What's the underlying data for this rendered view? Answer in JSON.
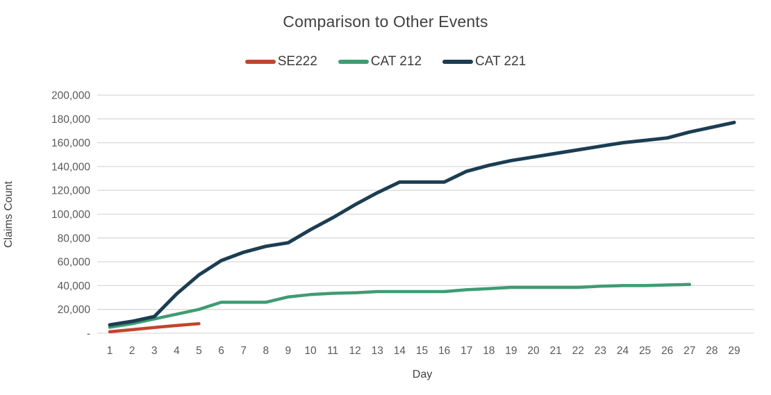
{
  "title": "Comparison to Other Events",
  "colors": {
    "title_text": "#404040",
    "axis_text": "#595959",
    "gridline": "#d9d9d9",
    "se222": "#c2442e",
    "cat212": "#3e9c72",
    "cat221": "#1c3d52"
  },
  "chart_data": {
    "type": "line",
    "title": "Comparison to Other Events",
    "xlabel": "Day",
    "ylabel": "Claims Count",
    "x": [
      1,
      2,
      3,
      4,
      5,
      6,
      7,
      8,
      9,
      10,
      11,
      12,
      13,
      14,
      15,
      16,
      17,
      18,
      19,
      20,
      21,
      22,
      23,
      24,
      25,
      26,
      27,
      28,
      29
    ],
    "ylim": [
      0,
      200000
    ],
    "ytick_step": 20000,
    "zero_tick_label": "-",
    "grid": true,
    "legend_position": "top-center",
    "series": [
      {
        "name": "SE222",
        "color": "#c2442e",
        "x": [
          1,
          2,
          3,
          4,
          5
        ],
        "values": [
          1200,
          3000,
          4800,
          6500,
          8000
        ]
      },
      {
        "name": "CAT 212",
        "color": "#3e9c72",
        "x": [
          1,
          2,
          3,
          4,
          5,
          6,
          7,
          8,
          9,
          10,
          11,
          12,
          13,
          14,
          15,
          16,
          17,
          18,
          19,
          20,
          21,
          22,
          23,
          24,
          25,
          26,
          27
        ],
        "values": [
          5000,
          8000,
          12000,
          16000,
          20000,
          26000,
          26000,
          26000,
          30500,
          32500,
          33500,
          34000,
          35000,
          35000,
          35000,
          35000,
          36500,
          37500,
          38500,
          38500,
          38500,
          38500,
          39500,
          40000,
          40000,
          40500,
          41000
        ]
      },
      {
        "name": "CAT 221",
        "color": "#1c3d52",
        "x": [
          1,
          2,
          3,
          4,
          5,
          6,
          7,
          8,
          9,
          10,
          11,
          12,
          13,
          14,
          15,
          16,
          17,
          18,
          19,
          20,
          21,
          22,
          23,
          24,
          25,
          26,
          27,
          28,
          29
        ],
        "values": [
          7000,
          10000,
          14000,
          33000,
          49000,
          61000,
          68000,
          73000,
          76000,
          87000,
          97000,
          108000,
          118000,
          127000,
          127000,
          127000,
          136000,
          141000,
          145000,
          148000,
          151000,
          154000,
          157000,
          160000,
          162000,
          164000,
          169000,
          173000,
          177000
        ]
      }
    ]
  }
}
